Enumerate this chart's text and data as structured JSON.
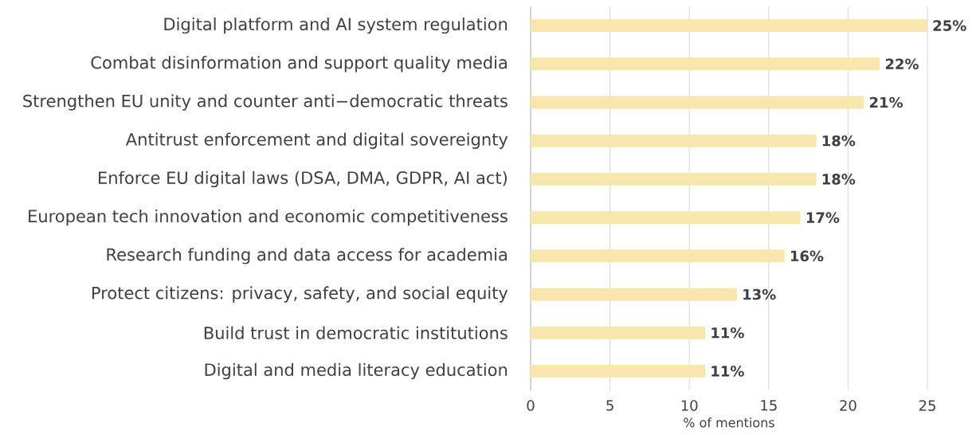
{
  "chart_data": {
    "type": "bar",
    "orientation": "horizontal",
    "xlabel": "% of mentions",
    "categories": [
      "Digital platform and AI system regulation",
      "Combat disinformation and support quality media",
      "Strengthen EU unity and counter anti−democratic threats",
      "Antitrust enforcement and digital sovereignty",
      "Enforce EU digital laws (DSA, DMA, GDPR, AI act)",
      "European tech innovation and economic competitiveness",
      "Research funding and data access for academia",
      "Protect citizens: privacy, safety, and social equity",
      "Build trust in democratic institutions",
      "Digital and media literacy education"
    ],
    "values": [
      25,
      22,
      21,
      18,
      18,
      17,
      16,
      13,
      11,
      11
    ],
    "value_labels": [
      "25%",
      "22%",
      "21%",
      "18%",
      "18%",
      "17%",
      "16%",
      "13%",
      "11%",
      "11%"
    ],
    "color": "#f8e6ad",
    "xlim": [
      0,
      25
    ],
    "xticks": [
      0,
      5,
      10,
      15,
      20,
      25
    ],
    "grid": "x"
  }
}
